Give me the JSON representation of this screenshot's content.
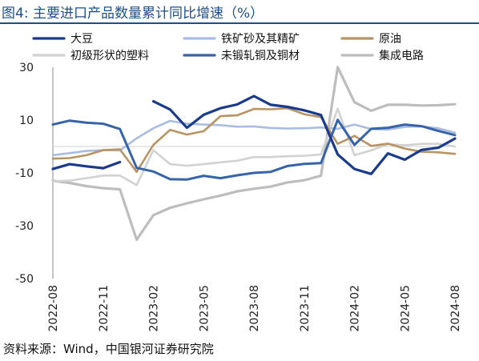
{
  "figure_label": "图4:",
  "title": "主要进口产品数量累计同比增速（%）",
  "source": "资料来源：Wind，中国银河证券研究院",
  "chart_data": {
    "type": "line",
    "x": [
      "2022-08",
      "2022-09",
      "2022-10",
      "2022-11",
      "2022-12",
      "2023-01",
      "2023-02",
      "2023-03",
      "2023-04",
      "2023-05",
      "2023-06",
      "2023-07",
      "2023-08",
      "2023-09",
      "2023-10",
      "2023-11",
      "2023-12",
      "2024-01",
      "2024-02",
      "2024-03",
      "2024-04",
      "2024-05",
      "2024-06",
      "2024-07",
      "2024-08"
    ],
    "x_tick_labels": [
      "2022-08",
      "2022-11",
      "2023-02",
      "2023-05",
      "2023-08",
      "2023-11",
      "2024-02",
      "2024-05",
      "2024-08"
    ],
    "ylim": [
      -50,
      30
    ],
    "y_ticks": [
      30,
      10,
      -10,
      -30,
      -50
    ],
    "legend_placement": "top",
    "series": [
      {
        "name": "大豆",
        "color": "#1a3a8c",
        "width": 3.2,
        "values": [
          -8.5,
          -6.7,
          -7.5,
          -8.2,
          -5.9,
          null,
          17.1,
          14,
          7.1,
          12,
          14.5,
          15.9,
          19.1,
          15.8,
          15,
          13.7,
          11.9,
          -3,
          -8.5,
          -10.4,
          -2.6,
          -5,
          -1.3,
          -0.5,
          3
        ]
      },
      {
        "name": "铁矿砂及其精矿",
        "color": "#a9bde3",
        "width": 2.6,
        "values": [
          -3.3,
          -2.5,
          -1.7,
          -1.4,
          -1.5,
          3.1,
          6.9,
          9.7,
          8.6,
          8.3,
          8.1,
          7.5,
          7.6,
          7,
          6.8,
          6.9,
          7.2,
          6.7,
          8.3,
          6.6,
          6.4,
          7.4,
          7.6,
          6.9,
          5.2
        ]
      },
      {
        "name": "原油",
        "color": "#b89464",
        "width": 2.6,
        "values": [
          -4.6,
          -4.4,
          -3.3,
          -1.4,
          -1.1,
          -9.6,
          0.6,
          6.3,
          4.5,
          5.8,
          11.5,
          11.8,
          14.2,
          14.1,
          14.5,
          12.2,
          11.1,
          1,
          4,
          0.2,
          1.1,
          -0.8,
          -2,
          -2.2,
          -2.8
        ]
      },
      {
        "name": "初级形状的塑料",
        "color": "#d2d2d2",
        "width": 2.6,
        "values": [
          -13.2,
          -12.9,
          -12,
          -11,
          -11,
          -14.6,
          -1.4,
          -6.7,
          -7.3,
          -6.7,
          -6,
          -5.4,
          -4,
          -4,
          -3.7,
          -3.5,
          -3,
          14.3,
          -3.3,
          -1.5,
          0.9,
          0.5,
          1,
          1,
          0
        ]
      },
      {
        "name": "未锻轧铜及铜材",
        "color": "#3764a8",
        "width": 3.0,
        "values": [
          8.3,
          9.8,
          9,
          8.6,
          6.6,
          -8.1,
          -9.5,
          -12.4,
          -12.5,
          -11.1,
          -12,
          -10.9,
          -10,
          -9.6,
          -7.4,
          -6.6,
          -6.3,
          10.1,
          0.6,
          6.7,
          7.1,
          8.3,
          7.7,
          5.9,
          4.3
        ]
      },
      {
        "name": "集成电路",
        "color": "#bdbdbd",
        "width": 3.2,
        "values": [
          -13,
          -13.8,
          -15,
          -15.8,
          -16.2,
          -35.3,
          -26,
          -23.2,
          -21.5,
          -20,
          -18.6,
          -17,
          -16,
          -15.2,
          -13.6,
          -12.8,
          -11.1,
          30,
          16.8,
          13.5,
          15.8,
          15.8,
          15.5,
          15.6,
          16
        ]
      }
    ]
  }
}
